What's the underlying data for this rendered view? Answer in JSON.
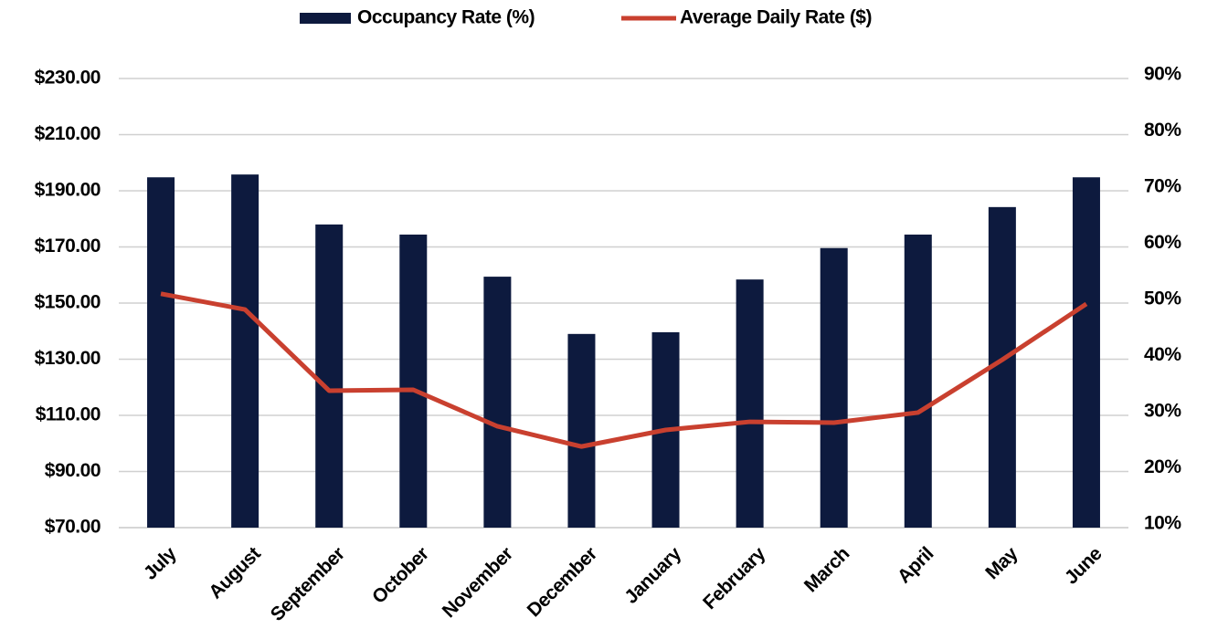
{
  "chart_data": {
    "type": "bar_line",
    "categories": [
      "July",
      "August",
      "September",
      "October",
      "November",
      "December",
      "January",
      "February",
      "March",
      "April",
      "May",
      "June"
    ],
    "series": [
      {
        "name": "Occupancy Rate (%)",
        "type": "bar",
        "color": "#0d1a3e",
        "axis": "y2",
        "values": [
          72.4,
          72.9,
          64.0,
          62.2,
          54.7,
          44.5,
          44.8,
          54.2,
          59.8,
          62.2,
          67.1,
          72.4
        ]
      },
      {
        "name": "Average Daily Rate ($)",
        "type": "line",
        "color": "#c9402f",
        "axis": "y",
        "values": [
          153.3,
          147.7,
          118.8,
          119.1,
          106.1,
          98.9,
          104.8,
          107.7,
          107.4,
          111.0,
          129.8,
          149.7
        ]
      }
    ],
    "ylim": [
      70,
      230
    ],
    "yticks": [
      {
        "value": 70,
        "label": "$70.00"
      },
      {
        "value": 90,
        "label": "$90.00"
      },
      {
        "value": 110,
        "label": "$110.00"
      },
      {
        "value": 130,
        "label": "$130.00"
      },
      {
        "value": 150,
        "label": "$150.00"
      },
      {
        "value": 170,
        "label": "$170.00"
      },
      {
        "value": 190,
        "label": "$190.00"
      },
      {
        "value": 210,
        "label": "$210.00"
      },
      {
        "value": 230,
        "label": "$230.00"
      }
    ],
    "y2lim": [
      10,
      90
    ],
    "y2ticks": [
      {
        "value": 10,
        "label": "10%"
      },
      {
        "value": 20,
        "label": "20%"
      },
      {
        "value": 30,
        "label": "30%"
      },
      {
        "value": 40,
        "label": "40%"
      },
      {
        "value": 50,
        "label": "50%"
      },
      {
        "value": 60,
        "label": "60%"
      },
      {
        "value": 70,
        "label": "70%"
      },
      {
        "value": 80,
        "label": "80%"
      },
      {
        "value": 90,
        "label": "90%"
      }
    ],
    "grid": true,
    "legend": "top"
  }
}
